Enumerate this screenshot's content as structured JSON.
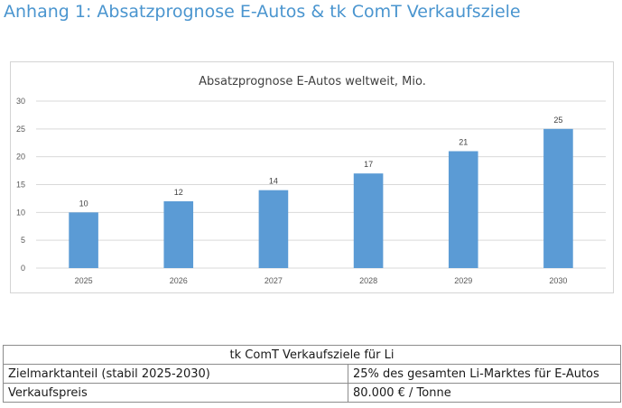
{
  "page": {
    "heading": "Anhang 1: Absatzprognose E-Autos & tk ComT Verkaufsziele"
  },
  "chart_data": {
    "type": "bar",
    "title": "Absatzprognose E-Autos weltweit, Mio.",
    "categories": [
      "2025",
      "2026",
      "2027",
      "2028",
      "2029",
      "2030"
    ],
    "values": [
      10,
      12,
      14,
      17,
      21,
      25
    ],
    "data_labels": [
      "10",
      "12",
      "14",
      "17",
      "21",
      "25"
    ],
    "ylim": [
      0,
      30
    ],
    "yticks": [
      0,
      5,
      10,
      15,
      20,
      25,
      30
    ],
    "grid": true,
    "legend": "none",
    "bar_color": "#5b9bd5"
  },
  "table": {
    "header": "tk ComT Verkaufsziele für Li",
    "rows": [
      {
        "label": "Zielmarktanteil (stabil 2025-2030)",
        "value": "25% des gesamten Li-Marktes für E-Autos"
      },
      {
        "label": "Verkaufspreis",
        "value": "80.000 € / Tonne"
      }
    ]
  }
}
